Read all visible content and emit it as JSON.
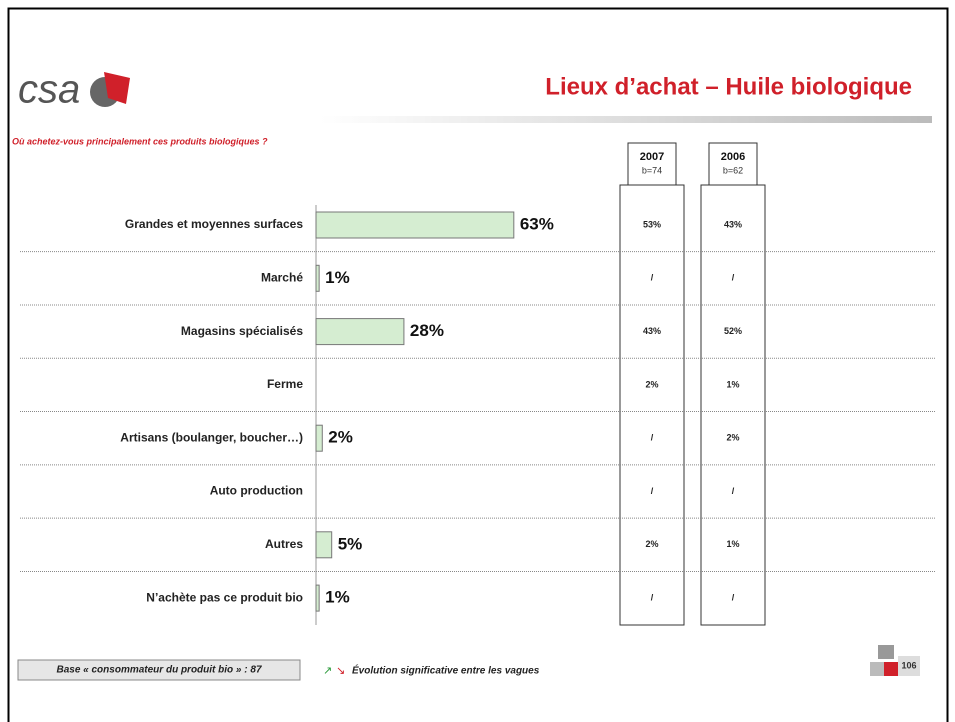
{
  "chart_data": {
    "type": "bar",
    "logo": "csa",
    "title": "Lieux d’achat – Huile biologique",
    "subtitle": "Où achetez-vous principalement ces produits biologiques ?",
    "categories": [
      "Grandes et moyennes surfaces",
      "Marché",
      "Magasins spécialisés",
      "Ferme",
      "Artisans (boulanger, boucher…)",
      "Auto production",
      "Autres",
      "N’achète pas ce produit bio"
    ],
    "values": [
      63,
      1,
      28,
      null,
      2,
      null,
      5,
      1
    ],
    "value_labels": [
      "63%",
      "1%",
      "28%",
      null,
      "2%",
      null,
      "5%",
      "1%"
    ],
    "color": "#d5edd1",
    "columns": [
      {
        "year": "2007",
        "base": "b=74",
        "values": [
          "53%",
          "/",
          "43%",
          "2%",
          "/",
          "/",
          "2%",
          "/"
        ]
      },
      {
        "year": "2006",
        "base": "b=62",
        "values": [
          "43%",
          "/",
          "52%",
          "1%",
          "2%",
          "/",
          "1%",
          "/"
        ]
      }
    ],
    "base_note": "Base « consommateur du produit bio » : 87",
    "legend_note": "Évolution significative entre les vagues",
    "page_number": "106"
  }
}
